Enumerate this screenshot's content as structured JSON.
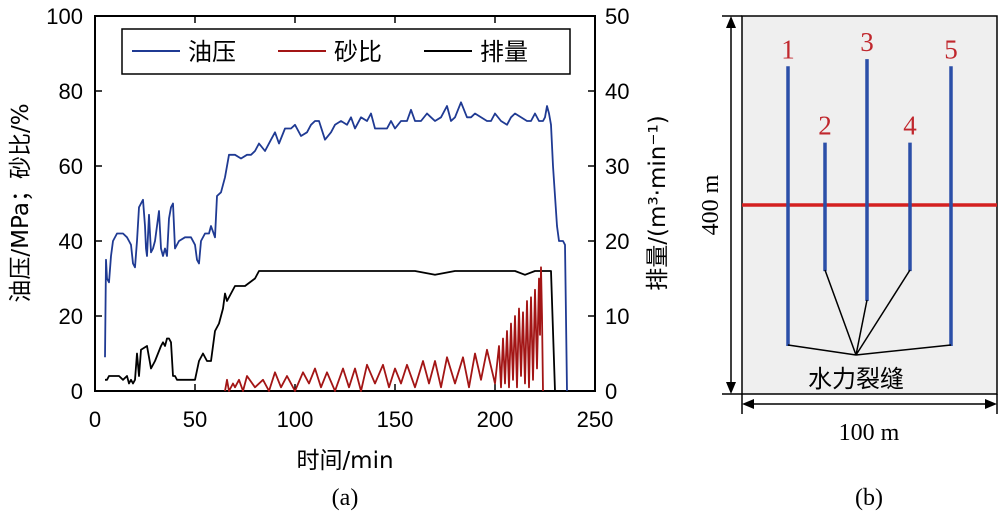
{
  "chart_data": [
    {
      "type": "line",
      "panel_label": "(a)",
      "xlabel": "时间/min",
      "ylabel_left": "油压/MPa；砂比/%",
      "ylabel_right": "排量/(m³·min⁻¹)",
      "xlim": [
        0,
        250
      ],
      "ylim_left": [
        0,
        100
      ],
      "ylim_right": [
        0,
        50
      ],
      "x_ticks": [
        "0",
        "50",
        "100",
        "150",
        "200",
        "250"
      ],
      "y_left_ticks": [
        "0",
        "20",
        "40",
        "60",
        "80",
        "100"
      ],
      "y_right_ticks": [
        "0",
        "10",
        "20",
        "30",
        "40",
        "50"
      ],
      "legend_position": "top",
      "colors": {
        "oil": "#1f3a93",
        "sand": "#a31515",
        "rate": "#000000"
      },
      "series": [
        {
          "name": "油压",
          "axis": "left",
          "x": [
            5,
            5.5,
            6,
            7,
            8,
            9,
            11,
            14,
            16,
            17,
            18,
            19,
            20,
            21,
            22,
            23,
            24,
            25,
            25.5,
            26,
            27,
            28,
            29,
            30,
            31,
            32,
            33,
            34,
            35,
            36,
            37,
            38,
            39,
            40,
            42,
            45,
            48,
            50,
            51,
            52,
            53,
            55,
            57,
            58,
            60,
            61,
            63,
            65,
            67,
            70,
            73,
            76,
            78,
            80,
            82,
            85,
            88,
            90,
            92,
            95,
            98,
            100,
            103,
            106,
            108,
            110,
            112,
            115,
            118,
            120,
            123,
            126,
            128,
            130,
            133,
            136,
            138,
            140,
            143,
            146,
            148,
            150,
            153,
            156,
            158,
            160,
            163,
            166,
            168,
            170,
            173,
            176,
            178,
            180,
            183,
            186,
            188,
            190,
            193,
            196,
            198,
            200,
            203,
            206,
            208,
            210,
            213,
            216,
            218,
            220,
            222,
            224,
            225,
            226,
            227,
            228,
            229,
            230,
            231,
            232,
            233,
            234,
            235,
            236
          ],
          "y": [
            9,
            35,
            30,
            29,
            36,
            40,
            42,
            42,
            41,
            40,
            39,
            34,
            33,
            40,
            49,
            50,
            51,
            44,
            38,
            36,
            47,
            37,
            38,
            40,
            44,
            48,
            38,
            36,
            38,
            36,
            46,
            49,
            50,
            38,
            40,
            41,
            41,
            39,
            35,
            34,
            40,
            42,
            42,
            44,
            41,
            52,
            53,
            57,
            63,
            63,
            62,
            63,
            63,
            64,
            66,
            64,
            67,
            69,
            66,
            70,
            70,
            71,
            68,
            69,
            71,
            72,
            72,
            67,
            69,
            71,
            72,
            71,
            73,
            70,
            73,
            72,
            74,
            70,
            70,
            70,
            72,
            70,
            72,
            72,
            75,
            72,
            72,
            74,
            73,
            72,
            73,
            76,
            72,
            73,
            77,
            73,
            73,
            74,
            73,
            72,
            72,
            74,
            72,
            71,
            73,
            74,
            73,
            72,
            72,
            74,
            72,
            72,
            73,
            76,
            74,
            71,
            60,
            52,
            44,
            40,
            40,
            40,
            39,
            0
          ]
        },
        {
          "name": "砂比",
          "axis": "left",
          "x": [
            65,
            66,
            67,
            69,
            70,
            72,
            74,
            76,
            80,
            84,
            87,
            90,
            93,
            96,
            100,
            104,
            107,
            110,
            113,
            116,
            120,
            124,
            127,
            130,
            133,
            136,
            140,
            144,
            147,
            150,
            153,
            156,
            160,
            164,
            167,
            170,
            173,
            176,
            180,
            184,
            187,
            190,
            193,
            196,
            200,
            202,
            203,
            204,
            205,
            206,
            207,
            208,
            209,
            210,
            211,
            212,
            213,
            214,
            215,
            216,
            217,
            218,
            219,
            220,
            221,
            222,
            222.5,
            223,
            223.5,
            224
          ],
          "y": [
            0,
            3,
            0,
            2,
            1,
            3,
            0,
            4,
            1,
            3,
            0,
            5,
            1,
            4,
            0,
            5,
            2,
            6,
            1,
            5,
            0,
            6,
            1,
            6,
            0,
            7,
            2,
            7,
            1,
            6,
            2,
            7,
            1,
            8,
            2,
            8,
            1,
            9,
            2,
            9,
            1,
            10,
            3,
            11,
            2,
            12,
            1,
            14,
            2,
            16,
            1,
            18,
            3,
            20,
            1,
            22,
            4,
            21,
            2,
            24,
            1,
            25,
            3,
            27,
            6,
            30,
            15,
            33,
            20,
            0
          ]
        },
        {
          "name": "排量",
          "axis": "right",
          "x": [
            5,
            6,
            7,
            9,
            12,
            14,
            16,
            17,
            18,
            19,
            20,
            21,
            22,
            23,
            26,
            28,
            30,
            33,
            34,
            35,
            36,
            37,
            38,
            39,
            40,
            41,
            42,
            45,
            48,
            50,
            52,
            54,
            56,
            58,
            60,
            62,
            64,
            65,
            66,
            68,
            70,
            75,
            80,
            82,
            84,
            86,
            88,
            90,
            95,
            100,
            110,
            120,
            130,
            140,
            150,
            160,
            170,
            180,
            190,
            200,
            210,
            215,
            220,
            225,
            228,
            229,
            230,
            231,
            232
          ],
          "y": [
            1.5,
            1.5,
            2,
            2,
            2,
            1.5,
            2,
            1,
            1.5,
            1,
            1.5,
            5,
            2,
            5.5,
            6,
            3,
            4,
            6,
            6.5,
            6,
            7,
            7,
            6.5,
            2,
            2,
            1.5,
            1.5,
            1.5,
            1.5,
            1.5,
            4,
            5,
            4,
            4,
            8,
            9,
            11,
            13,
            12,
            13,
            14,
            14,
            15,
            16,
            16,
            16,
            16,
            16,
            16,
            16,
            16,
            16,
            16,
            16,
            16,
            16,
            15.5,
            16,
            16,
            16,
            16,
            15.5,
            16,
            16,
            16,
            8,
            0,
            0,
            0
          ]
        }
      ]
    },
    {
      "type": "diagram",
      "panel_label": "(b)",
      "wells": [
        {
          "label": "1",
          "length_fraction": 0.74
        },
        {
          "label": "2",
          "length_fraction": 0.34
        },
        {
          "label": "3",
          "length_fraction": 0.64
        },
        {
          "label": "4",
          "length_fraction": 0.34
        },
        {
          "label": "5",
          "length_fraction": 0.74
        }
      ],
      "fracture_label": "水力裂缝",
      "height_label": "400 m",
      "width_label": "100 m",
      "colors": {
        "well": "#2b4fa8",
        "well_label": "#c0272d",
        "horizontal_line": "#d42020",
        "background": "#efefef"
      }
    }
  ]
}
